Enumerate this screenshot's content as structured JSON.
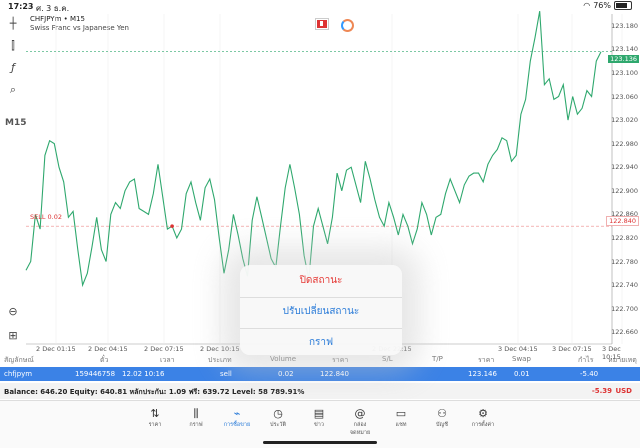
{
  "status_bar": {
    "time": "17:23",
    "date": "ศ. 3 ธ.ค.",
    "battery": "76%"
  },
  "toolbar": {
    "timeframe": "M15"
  },
  "chart": {
    "symbol_title": "CHFJPYm • M15",
    "symbol_desc": "Swiss Franc vs Japanese Yen",
    "sell_label": "SELL 0.02",
    "current_price": "123.136",
    "open_price": "122.840",
    "price_labels": [
      "123.180",
      "123.140",
      "123.100",
      "123.060",
      "123.020",
      "122.980",
      "122.940",
      "122.900",
      "122.860",
      "122.820",
      "122.780",
      "122.740",
      "122.700",
      "122.660"
    ],
    "time_labels": [
      "2 Dec 01:15",
      "2 Dec 04:15",
      "2 Dec 07:15",
      "2 Dec 10:15",
      "2 Dec 22:15",
      "3 Dec 04:15",
      "3 Dec 07:15",
      "3 Dec 10:15"
    ],
    "line_color": "#2fa86e"
  },
  "chart_data": {
    "type": "line",
    "title": "CHFJPYm • M15",
    "subtitle": "Swiss Franc vs Japanese Yen",
    "xlabel": "",
    "ylabel": "",
    "ylim": [
      122.64,
      123.2
    ],
    "series": [
      {
        "name": "",
        "values": [
          122.765,
          122.78,
          122.86,
          122.835,
          122.96,
          122.985,
          122.98,
          122.94,
          122.915,
          122.855,
          122.865,
          122.8,
          122.74,
          122.76,
          122.805,
          122.855,
          122.8,
          122.78,
          122.86,
          122.88,
          122.87,
          122.9,
          122.915,
          122.92,
          122.87,
          122.865,
          122.86,
          122.895,
          122.945,
          122.89,
          122.835,
          122.84,
          122.82,
          122.835,
          122.895,
          122.915,
          122.88,
          122.85,
          122.905,
          122.92,
          122.885,
          122.82,
          122.76,
          122.8,
          122.86,
          122.825,
          122.785,
          122.755,
          122.85,
          122.89,
          122.855,
          122.82,
          122.785,
          122.77,
          122.84,
          122.905,
          122.945,
          122.905,
          122.86,
          122.79,
          122.75,
          122.84,
          122.87,
          122.84,
          122.81,
          122.855,
          122.93,
          122.9,
          122.935,
          122.94,
          122.91,
          122.88,
          122.95,
          122.92,
          122.885,
          122.855,
          122.84,
          122.88,
          122.855,
          122.825,
          122.86,
          122.84,
          122.81,
          122.835,
          122.88,
          122.86,
          122.825,
          122.855,
          122.86,
          122.895,
          122.92,
          122.9,
          122.88,
          122.91,
          122.925,
          122.93,
          122.93,
          122.915,
          122.945,
          122.96,
          122.97,
          122.99,
          122.985,
          122.95,
          122.96,
          123.03,
          123.055,
          123.12,
          123.16,
          123.205,
          123.08,
          123.09,
          123.055,
          123.06,
          123.08,
          123.02,
          123.06,
          123.03,
          123.04,
          123.07,
          123.06,
          123.12,
          123.136
        ]
      }
    ]
  },
  "positions": {
    "headers": [
      "สัญลักษณ์",
      "ตั๋ว",
      "เวลา",
      "ประเภท",
      "Volume",
      "ราคา",
      "S/L",
      "T/P",
      "ราคา",
      "Swap",
      "กำไร",
      "หมายเหตุ"
    ],
    "row": {
      "symbol": "chfjpym",
      "ticket": "159446758",
      "time": "12.02 10:16",
      "type": "sell",
      "volume": "0.02",
      "open_price": "122.840",
      "price": "123.146",
      "swap": "0.01",
      "profit": "-5.40"
    }
  },
  "account": {
    "balance_line": "Balance: 646.20 Equity: 640.81 หลักประกัน: 1.09 ฟรี: 639.72 Level: 58 789.91%",
    "total_profit": "-5.39",
    "currency": "USD"
  },
  "action_sheet": {
    "close_label": "ปิดสถานะ",
    "modify_label": "ปรับเปลี่ยนสถานะ",
    "chart_label": "กราฟ"
  },
  "nav": {
    "items": [
      {
        "label": "ราคา",
        "icon": "quotes-icon"
      },
      {
        "label": "กราฟ",
        "icon": "candles-icon"
      },
      {
        "label": "การซื้อขาย",
        "icon": "trade-icon"
      },
      {
        "label": "ประวัติ",
        "icon": "history-icon"
      },
      {
        "label": "ข่าว",
        "icon": "news-icon"
      },
      {
        "label": "กล่องจดหมาย",
        "icon": "mail-icon"
      },
      {
        "label": "แชท",
        "icon": "chat-icon"
      },
      {
        "label": "บัญชี",
        "icon": "account-icon"
      },
      {
        "label": "การตั้งค่า",
        "icon": "settings-icon"
      }
    ]
  }
}
